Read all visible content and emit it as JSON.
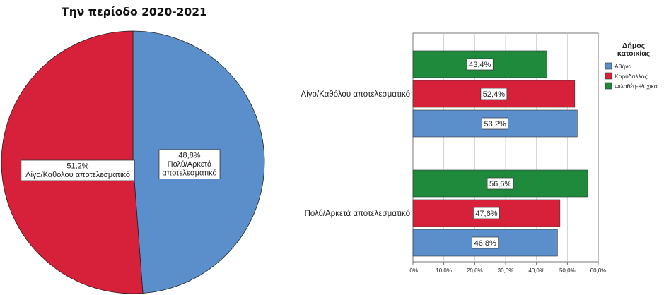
{
  "chart_data": [
    {
      "type": "pie",
      "title": "Την περίοδο 2020-2021",
      "slices": [
        {
          "label": "Πολύ/Αρκετά αποτελεσματικό",
          "value": 48.8,
          "display": "48,8%",
          "label_lines": [
            "Πολύ/Αρκετά",
            "αποτελεσματικό"
          ],
          "color": "#5b8fcc"
        },
        {
          "label": "Λίγο/Καθόλου αποτελεσματικό",
          "value": 51.2,
          "display": "51,2%",
          "label_lines": [
            "Λίγο/Καθόλου αποτελεσματικό"
          ],
          "color": "#d7203a"
        }
      ]
    },
    {
      "type": "bar",
      "orientation": "horizontal",
      "categories": [
        "Λίγο/Καθόλου αποτελεσματικό",
        "Πολύ/Αρκετά αποτελεσματικό"
      ],
      "series": [
        {
          "name": "Αθήνα",
          "color": "#5b8fcc",
          "values": [
            53.2,
            46.8
          ],
          "labels": [
            "53,2%",
            "46,8%"
          ]
        },
        {
          "name": "Κορυδαλλός",
          "color": "#d7203a",
          "values": [
            52.4,
            47.6
          ],
          "labels": [
            "52,4%",
            "47,6%"
          ]
        },
        {
          "name": "Φιλοθέη-Ψυχικό",
          "color": "#1f8a3c",
          "values": [
            43.4,
            56.6
          ],
          "labels": [
            "43,4%",
            "56,6%"
          ]
        }
      ],
      "xlim": [
        0,
        60
      ],
      "xticks": [
        ",0%",
        "10,0%",
        "20,0%",
        "30,0%",
        "40,0%",
        "50,0%",
        "60,0%"
      ],
      "grid": true,
      "legend": {
        "title_lines": [
          "Δήμος",
          "κατοικίας"
        ],
        "placement": "right"
      }
    }
  ]
}
